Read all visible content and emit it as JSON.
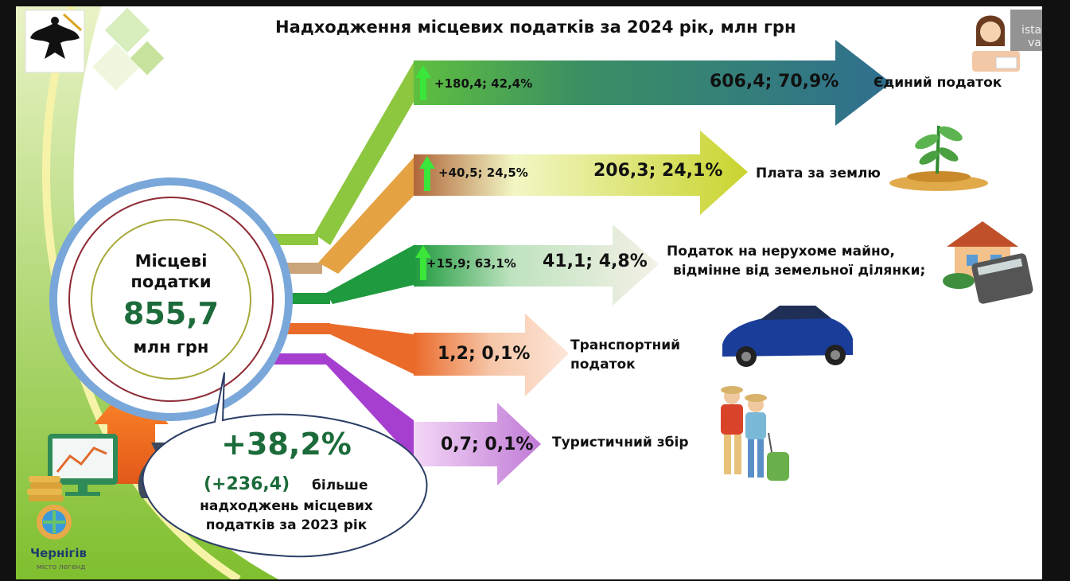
{
  "title": "Надходження місцевих податків за 2024 рік, млн грн",
  "center": {
    "line1": "Місцеві",
    "line2": "податки",
    "total": "855,7",
    "unit": "млн грн"
  },
  "growth": {
    "percent": "+38,2%",
    "abs": "(+236,4)",
    "text1": "більше",
    "text2": "надходжень місцевих",
    "text3": "податків за 2023 рік"
  },
  "arrows": [
    {
      "change": "+180,4; 42,4%",
      "value": "606,4; 70,9%",
      "label": "Єдиний податок",
      "color": "#3a7e73"
    },
    {
      "change": "+40,5; 24,5%",
      "value": "206,3; 24,1%",
      "label": "Плата за землю",
      "color": "#d9e04a"
    },
    {
      "change": "+15,9; 63,1%",
      "value": "41,1; 4,8%",
      "label1": "Податок на нерухоме майно,",
      "label2": "відмінне від земельної ділянки;",
      "color": "#2fa54d"
    },
    {
      "value": "1,2; 0,1%",
      "label1": "Транспортний",
      "label2": "податок",
      "color": "#ea6a2a"
    },
    {
      "value": "0,7; 0,1%",
      "label": "Туристичний збір",
      "color": "#a63fd0"
    }
  ],
  "logo": {
    "city": "Чернігів",
    "slogan": "місто легенд"
  },
  "watermark": {
    "line1": "ista",
    "line2": "va"
  }
}
